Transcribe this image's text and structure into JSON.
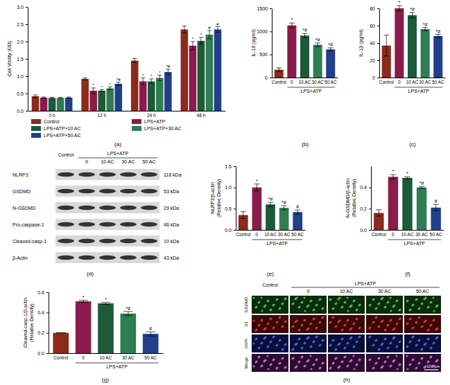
{
  "chart_data": [
    {
      "type": "bar",
      "panel_label": "(a)",
      "y_label": [
        "Cell Vibility (OD)"
      ],
      "categories": [
        "0 h",
        "12 h",
        "24 h",
        "48 h"
      ],
      "ylim": [
        0,
        3
      ],
      "yticks": [
        {
          "value": 0,
          "label": "0.0"
        },
        0.5,
        {
          "value": 1,
          "label": "1.0"
        },
        1.5,
        {
          "value": 2,
          "label": "2.0"
        },
        2.5,
        {
          "value": 3,
          "label": "3.0"
        }
      ],
      "legend": "bottom",
      "series": [
        {
          "name": "Control",
          "color": "#8c2a1c",
          "values": [
            0.42,
            0.92,
            1.45,
            2.35
          ],
          "errors": [
            0.04,
            0.03,
            0.06,
            0.1
          ],
          "annotations": [
            null,
            null,
            null,
            null
          ]
        },
        {
          "name": "LPS+ATP",
          "color": "#8a1c4c",
          "values": [
            0.38,
            0.58,
            0.85,
            1.88
          ],
          "errors": [
            0.02,
            0.08,
            0.1,
            0.12
          ],
          "annotations": [
            null,
            "*",
            "*",
            "*"
          ]
        },
        {
          "name": "LPS+ATP+10 AC",
          "color": "#1d5a3a",
          "values": [
            0.37,
            0.58,
            0.85,
            2.02
          ],
          "errors": [
            0.02,
            0.03,
            0.07,
            0.1
          ],
          "annotations": [
            null,
            "*",
            "*",
            "*"
          ]
        },
        {
          "name": "LPS+ATP+30 AC",
          "color": "#2f7d52",
          "values": [
            0.37,
            0.65,
            0.95,
            2.2
          ],
          "errors": [
            0.02,
            0.04,
            0.08,
            0.12
          ],
          "annotations": [
            null,
            "*",
            "*",
            "#"
          ]
        },
        {
          "name": "LPS+ATP+50 AC",
          "color": "#213f8a",
          "values": [
            0.38,
            0.78,
            1.12,
            2.35
          ],
          "errors": [
            0.02,
            0.05,
            0.08,
            0.08
          ],
          "annotations": [
            null,
            "*#",
            "*#",
            "#"
          ]
        }
      ]
    },
    {
      "type": "bar",
      "panel_label": "(b)",
      "y_label": [
        "IL-18 (pg/ml)"
      ],
      "group_label": "LPS+ATP",
      "categories": [
        "Control",
        "0",
        "10 AC",
        "30 AC",
        "50 AC"
      ],
      "colors": [
        "#8c2a1c",
        "#8a1c4c",
        "#1d5a3a",
        "#2f7d52",
        "#213f8a"
      ],
      "ylim": [
        0,
        1500
      ],
      "yticks": [
        0,
        500,
        1000,
        1500
      ],
      "values": [
        170,
        1130,
        910,
        710,
        610
      ],
      "errors": [
        40,
        50,
        45,
        40,
        35
      ],
      "annotations": [
        null,
        "*",
        "*#",
        "*#",
        "*#"
      ]
    },
    {
      "type": "bar",
      "panel_label": "(c)",
      "y_label": [
        "IL-1β (pg/ml)"
      ],
      "group_label": "LPS+ATP",
      "categories": [
        "Control",
        "0",
        "10 AC",
        "30 AC",
        "50 AC"
      ],
      "colors": [
        "#8c2a1c",
        "#8a1c4c",
        "#1d5a3a",
        "#2f7d52",
        "#213f8a"
      ],
      "ylim": [
        0,
        80
      ],
      "yticks": [
        0,
        20,
        40,
        60,
        80
      ],
      "values": [
        37,
        80,
        72,
        56,
        48
      ],
      "errors": [
        12,
        3,
        3,
        2,
        2
      ],
      "annotations": [
        null,
        "*",
        "*#",
        "*#",
        "*#"
      ]
    },
    {
      "type": "bar",
      "panel_label": "(e)",
      "y_label": [
        "NLRP3/β-actin",
        "(Relative Density)"
      ],
      "group_label": "LPS+ATP",
      "categories": [
        "Control",
        "0",
        "10 AC",
        "30 AC",
        "50 AC"
      ],
      "colors": [
        "#8c2a1c",
        "#8a1c4c",
        "#1d5a3a",
        "#2f7d52",
        "#213f8a"
      ],
      "ylim": [
        0,
        1.5
      ],
      "yticks": [
        {
          "value": 0,
          "label": "0.0"
        },
        0.5,
        {
          "value": 1,
          "label": "1.0"
        },
        1.5
      ],
      "values": [
        0.35,
        1.0,
        0.6,
        0.52,
        0.42
      ],
      "errors": [
        0.08,
        0.08,
        0.05,
        0.05,
        0.05
      ],
      "annotations": [
        null,
        "*",
        "*#",
        "*#",
        "#"
      ]
    },
    {
      "type": "bar",
      "panel_label": "(f)",
      "y_label": [
        "N-GSDMD/β-actin",
        "(Relative Density)"
      ],
      "group_label": "LPS+ATP",
      "categories": [
        "Control",
        "0",
        "10 AC",
        "30 AC",
        "50 AC"
      ],
      "colors": [
        "#8c2a1c",
        "#8a1c4c",
        "#1d5a3a",
        "#2f7d52",
        "#213f8a"
      ],
      "ylim": [
        0,
        0.6
      ],
      "yticks": [
        {
          "value": 0,
          "label": "0.0"
        },
        0.2,
        0.4
      ],
      "values": [
        0.16,
        0.5,
        0.49,
        0.4,
        0.21
      ],
      "errors": [
        0.03,
        0.02,
        0.01,
        0.01,
        0.03
      ],
      "annotations": [
        null,
        "*",
        "*",
        "*#",
        "#"
      ]
    },
    {
      "type": "bar",
      "panel_label": "(g)",
      "y_label": [
        "Cleaved-casp-1/β-actin",
        "(Relative Density)"
      ],
      "group_label": "LPS+ATP",
      "categories": [
        "Control",
        "0",
        "10 AC",
        "30 AC",
        "50 AC"
      ],
      "colors": [
        "#8c2a1c",
        "#8a1c4c",
        "#1d5a3a",
        "#2f7d52",
        "#213f8a"
      ],
      "ylim": [
        0,
        0.6
      ],
      "yticks": [
        {
          "value": 0,
          "label": "0.0"
        },
        0.2,
        0.4,
        0.6
      ],
      "values": [
        0.2,
        0.51,
        0.49,
        0.39,
        0.19
      ],
      "errors": [
        0,
        0.01,
        0.01,
        0.02,
        0.02
      ],
      "annotations": [
        null,
        "*",
        "*",
        "*#",
        "#"
      ]
    }
  ],
  "figure": {
    "blot": {
      "panel_label": "(d)",
      "group_label": "LPS+ATP",
      "lanes": [
        "Control",
        "0",
        "10 AC",
        "30 AC",
        "50 AC"
      ],
      "rows": [
        {
          "protein": "NLRP3",
          "size": "118 kDa"
        },
        {
          "protein": "GSDMD",
          "size": "53 kDa"
        },
        {
          "protein": "N-GSDMD",
          "size": "29 kDa"
        },
        {
          "protein": "Pro-caspase-1",
          "size": "46 kDa"
        },
        {
          "protein": "Cleaved-casp-1",
          "size": "10 kDa"
        },
        {
          "protein": "β-Actin",
          "size": "43 kDa"
        }
      ]
    },
    "microscopy": {
      "panel_label": "(h)",
      "group_label": "LPS+ATP",
      "columns": [
        "Control",
        "0",
        "10 AC",
        "30 AC",
        "50 AC"
      ],
      "rows": [
        "GSDMD",
        "DiI",
        "DAPI",
        "Merge"
      ],
      "scale_bar": "100 μm"
    }
  }
}
